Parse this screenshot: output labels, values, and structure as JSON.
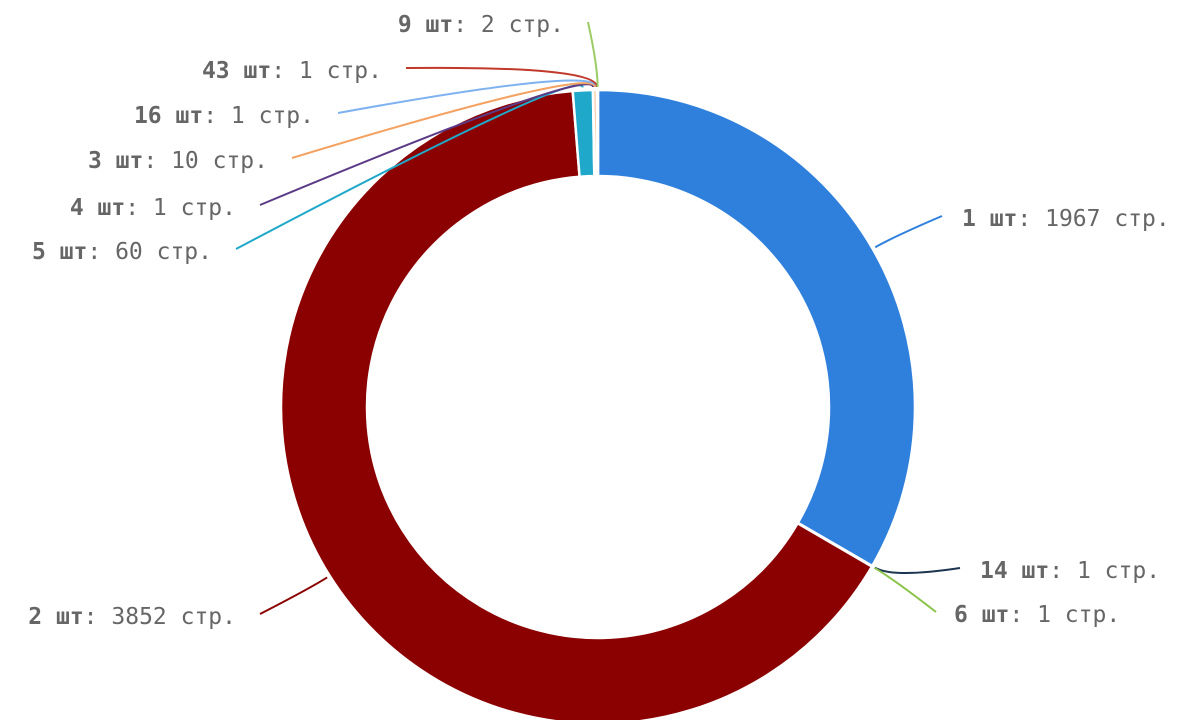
{
  "chart_data": {
    "type": "pie",
    "donut": true,
    "unit": "стр.",
    "categories": [
      "1 шт",
      "14 шт",
      "6 шт",
      "2 шт",
      "5 шт",
      "4 шт",
      "3 шт",
      "16 шт",
      "43 шт",
      "9 шт"
    ],
    "values": [
      1967,
      1,
      1,
      3852,
      60,
      1,
      10,
      1,
      1,
      2
    ],
    "colors": [
      "#2f80dc",
      "#1c3550",
      "#8bc34a",
      "#8b0000",
      "#1fa8c9",
      "#5b3a86",
      "#f4a261",
      "#7fb2f0",
      "#c0392b",
      "#9ccc65"
    ],
    "labels": [
      {
        "count": "1 шт",
        "sep": ": ",
        "value": "1967 стр."
      },
      {
        "count": "14 шт",
        "sep": ": ",
        "value": "1 стр."
      },
      {
        "count": "6 шт",
        "sep": ": ",
        "value": "1 стр."
      },
      {
        "count": "2 шт",
        "sep": ": ",
        "value": "3852 стр."
      },
      {
        "count": "5 шт",
        "sep": ": ",
        "value": "60 стр."
      },
      {
        "count": "4 шт",
        "sep": ": ",
        "value": "1 стр."
      },
      {
        "count": "3 шт",
        "sep": ": ",
        "value": "10 стр."
      },
      {
        "count": "16 шт",
        "sep": ": ",
        "value": "1 стр."
      },
      {
        "count": "43 шт",
        "sep": ": ",
        "value": "1 стр."
      },
      {
        "count": "9 шт",
        "sep": ": ",
        "value": "2 стр."
      }
    ],
    "legend": "none"
  }
}
